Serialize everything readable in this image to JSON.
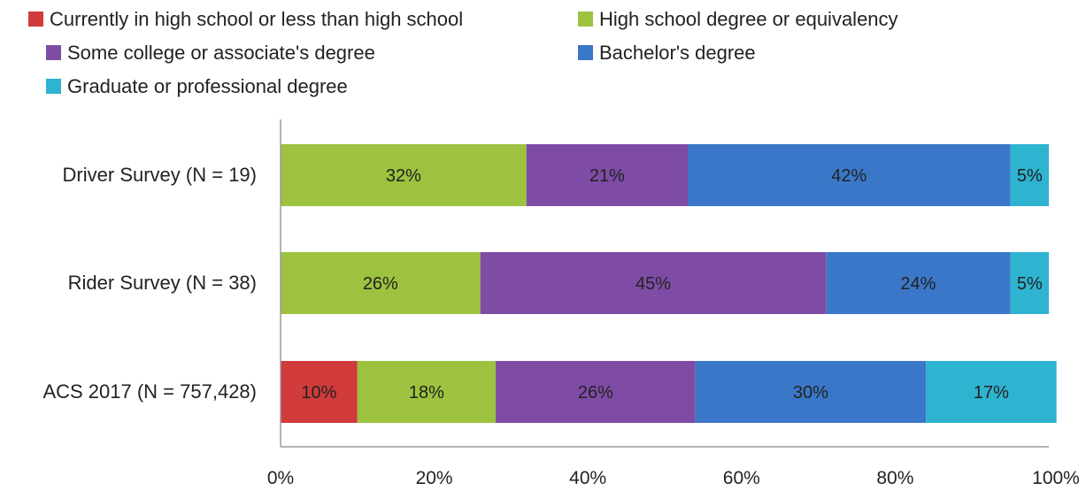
{
  "chart_data": {
    "type": "bar",
    "orientation": "horizontal",
    "stacked": "percent",
    "categories": [
      "Driver Survey (N = 19)",
      "Rider Survey (N = 38)",
      "ACS 2017 (N = 757,428)"
    ],
    "series": [
      {
        "name": "Currently in high school or less than high school",
        "color": "#d13b3b",
        "values": [
          0,
          0,
          10
        ]
      },
      {
        "name": "High school degree or equivalency",
        "color": "#9dc23f",
        "values": [
          32,
          26,
          18
        ]
      },
      {
        "name": "Some college or associate's degree",
        "color": "#7e4ca5",
        "values": [
          21,
          45,
          26
        ]
      },
      {
        "name": "Bachelor's degree",
        "color": "#3a77c9",
        "values": [
          42,
          24,
          30
        ]
      },
      {
        "name": "Graduate or professional degree",
        "color": "#2eb3d0",
        "values": [
          5,
          5,
          17
        ]
      }
    ],
    "value_labels": [
      [
        "",
        "32%",
        "21%",
        "42%",
        "5%"
      ],
      [
        "",
        "26%",
        "45%",
        "24%",
        "5%"
      ],
      [
        "10%",
        "18%",
        "26%",
        "30%",
        "17%"
      ]
    ],
    "xlim": [
      0,
      100
    ],
    "xticks": [
      "0%",
      "20%",
      "40%",
      "60%",
      "80%",
      "100%"
    ],
    "legend_position": "top-left",
    "grid": false
  }
}
